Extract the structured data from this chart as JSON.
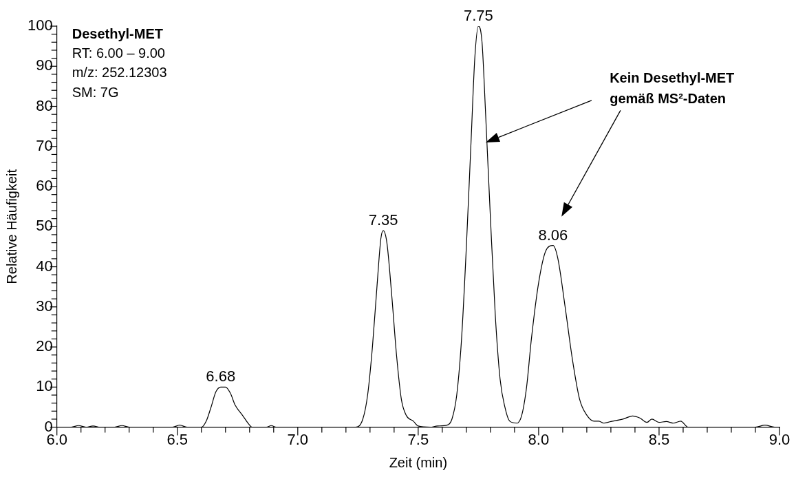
{
  "chart_data": {
    "type": "line",
    "title": "Desethyl-MET",
    "xlabel": "Zeit (min)",
    "ylabel": "Relative Häufigkeit",
    "x": [
      6.0,
      6.06,
      6.09,
      6.12,
      6.15,
      6.18,
      6.24,
      6.27,
      6.3,
      6.48,
      6.51,
      6.54,
      6.6,
      6.62,
      6.64,
      6.66,
      6.68,
      6.7,
      6.72,
      6.74,
      6.77,
      6.8,
      6.81,
      6.87,
      6.89,
      6.91,
      7.24,
      7.27,
      7.29,
      7.31,
      7.33,
      7.345,
      7.355,
      7.37,
      7.39,
      7.41,
      7.43,
      7.45,
      7.48,
      7.5,
      7.55,
      7.58,
      7.62,
      7.64,
      7.66,
      7.68,
      7.7,
      7.72,
      7.735,
      7.75,
      7.765,
      7.78,
      7.8,
      7.82,
      7.84,
      7.86,
      7.88,
      7.91,
      7.93,
      7.95,
      7.97,
      8.0,
      8.03,
      8.06,
      8.08,
      8.11,
      8.14,
      8.17,
      8.2,
      8.23,
      8.25,
      8.27,
      8.3,
      8.35,
      8.39,
      8.42,
      8.45,
      8.47,
      8.5,
      8.53,
      8.56,
      8.59,
      8.62,
      8.9,
      8.94,
      8.98,
      9.0
    ],
    "series": [
      {
        "color": "#000000",
        "values": [
          0,
          0,
          0.4,
          0,
          0.3,
          0,
          0,
          0.4,
          0,
          0,
          0.5,
          0,
          0,
          1.5,
          5,
          8.8,
          10,
          10,
          8.5,
          5.5,
          3,
          0.5,
          0,
          0,
          0.4,
          0,
          0,
          2,
          8,
          20,
          36,
          47,
          49,
          46,
          33,
          18,
          7,
          3,
          1.5,
          0.3,
          0,
          0.3,
          0.5,
          2,
          8,
          22,
          45,
          72,
          92,
          100,
          96,
          78,
          52,
          28,
          12,
          5,
          1.5,
          1,
          3,
          10,
          22,
          36,
          44,
          45.3,
          42,
          30,
          17,
          7,
          3,
          1.5,
          1.5,
          1,
          1.4,
          2,
          2.8,
          2.3,
          1.2,
          2,
          1.2,
          1.4,
          1,
          1.5,
          0,
          0,
          0.5,
          0,
          0
        ]
      }
    ],
    "xlim": [
      6.0,
      9.0
    ],
    "ylim": [
      0,
      100
    ],
    "xticks": [
      {
        "value": 6.0,
        "label": "6.0"
      },
      {
        "value": 6.1,
        "label": null
      },
      {
        "value": 6.2,
        "label": null
      },
      {
        "value": 6.3,
        "label": null
      },
      {
        "value": 6.4,
        "label": null
      },
      {
        "value": 6.5,
        "label": "6.5"
      },
      {
        "value": 6.6,
        "label": null
      },
      {
        "value": 6.7,
        "label": null
      },
      {
        "value": 6.8,
        "label": null
      },
      {
        "value": 6.9,
        "label": null
      },
      {
        "value": 7.0,
        "label": "7.0"
      },
      {
        "value": 7.1,
        "label": null
      },
      {
        "value": 7.2,
        "label": null
      },
      {
        "value": 7.3,
        "label": null
      },
      {
        "value": 7.4,
        "label": null
      },
      {
        "value": 7.5,
        "label": "7.5"
      },
      {
        "value": 7.6,
        "label": null
      },
      {
        "value": 7.7,
        "label": null
      },
      {
        "value": 7.8,
        "label": null
      },
      {
        "value": 7.9,
        "label": null
      },
      {
        "value": 8.0,
        "label": "8.0"
      },
      {
        "value": 8.1,
        "label": null
      },
      {
        "value": 8.2,
        "label": null
      },
      {
        "value": 8.3,
        "label": null
      },
      {
        "value": 8.4,
        "label": null
      },
      {
        "value": 8.5,
        "label": "8.5"
      },
      {
        "value": 8.6,
        "label": null
      },
      {
        "value": 8.7,
        "label": null
      },
      {
        "value": 8.8,
        "label": null
      },
      {
        "value": 8.9,
        "label": null
      },
      {
        "value": 9.0,
        "label": "9.0"
      }
    ],
    "yticks": [
      0,
      {
        "value": 2,
        "label": null
      },
      {
        "value": 4,
        "label": null
      },
      {
        "value": 6,
        "label": null
      },
      {
        "value": 8,
        "label": null
      },
      10,
      {
        "value": 12,
        "label": null
      },
      {
        "value": 14,
        "label": null
      },
      {
        "value": 16,
        "label": null
      },
      {
        "value": 18,
        "label": null
      },
      20,
      {
        "value": 22,
        "label": null
      },
      {
        "value": 24,
        "label": null
      },
      {
        "value": 26,
        "label": null
      },
      {
        "value": 28,
        "label": null
      },
      30,
      {
        "value": 32,
        "label": null
      },
      {
        "value": 34,
        "label": null
      },
      {
        "value": 36,
        "label": null
      },
      {
        "value": 38,
        "label": null
      },
      40,
      {
        "value": 42,
        "label": null
      },
      {
        "value": 44,
        "label": null
      },
      {
        "value": 46,
        "label": null
      },
      {
        "value": 48,
        "label": null
      },
      50,
      {
        "value": 52,
        "label": null
      },
      {
        "value": 54,
        "label": null
      },
      {
        "value": 56,
        "label": null
      },
      {
        "value": 58,
        "label": null
      },
      60,
      {
        "value": 62,
        "label": null
      },
      {
        "value": 64,
        "label": null
      },
      {
        "value": 66,
        "label": null
      },
      {
        "value": 68,
        "label": null
      },
      70,
      {
        "value": 72,
        "label": null
      },
      {
        "value": 74,
        "label": null
      },
      {
        "value": 76,
        "label": null
      },
      {
        "value": 78,
        "label": null
      },
      80,
      {
        "value": 82,
        "label": null
      },
      {
        "value": 84,
        "label": null
      },
      {
        "value": 86,
        "label": null
      },
      {
        "value": 88,
        "label": null
      },
      90,
      {
        "value": 92,
        "label": null
      },
      {
        "value": 94,
        "label": null
      },
      {
        "value": 96,
        "label": null
      },
      {
        "value": 98,
        "label": null
      },
      100
    ],
    "marker": "none",
    "line_style": "solid",
    "annotations": [
      "RT: 6.00 – 9.00",
      "m/z: 252.12303",
      "SM: 7G",
      {
        "text": "6.68",
        "x": 6.68,
        "y": 10
      },
      {
        "text": "7.35",
        "x": 7.355,
        "y": 49
      },
      {
        "text": "7.75",
        "x": 7.75,
        "y": 100
      },
      {
        "text": "8.06",
        "x": 8.06,
        "y": 45.3
      },
      "Kein Desethyl-MET\ngemäß MS²-Daten"
    ]
  }
}
